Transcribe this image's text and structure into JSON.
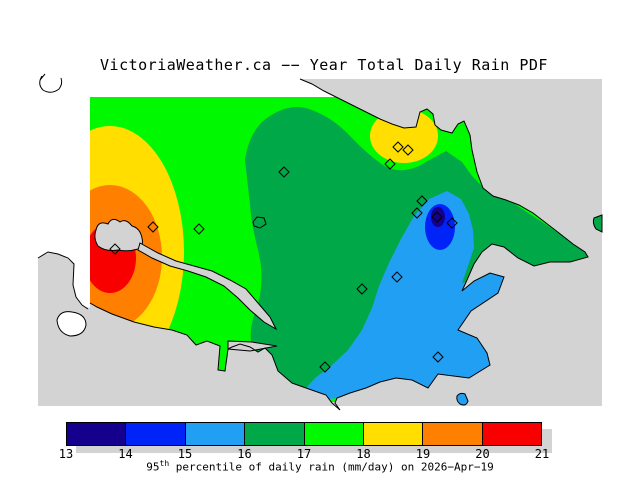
{
  "title": "VictoriaWeather.ca −− Year Total Daily Rain PDF",
  "colorbar": {
    "ticks": [
      "13",
      "14",
      "15",
      "16",
      "17",
      "18",
      "19",
      "20",
      "21"
    ],
    "segment_colors": [
      "#14008C",
      "#0023F8",
      "#219FF3",
      "#00A848",
      "#00F800",
      "#FFDE00",
      "#FF7F00",
      "#F80000"
    ],
    "caption_prefix": "95",
    "caption_sup": "th",
    "caption_rest": " percentile of daily rain (mm/day) on 2026−Apr−19"
  },
  "palette": {
    "navy_13_14": "#14008C",
    "blue_14_15": "#0023F8",
    "lightblue_15_16": "#219FF3",
    "green_16_17": "#00A848",
    "brightgreen_17_18": "#00F800",
    "yellow_18_19": "#FFDE00",
    "orange_19_20": "#FF7F00",
    "red_20_21": "#F80000",
    "sea_gray": "#D3D3D3",
    "land_outside_white": "#FFFFFF",
    "coastline_black": "#000000"
  },
  "map": {
    "station_markers": [
      [
        284,
        172
      ],
      [
        153,
        227
      ],
      [
        199,
        229
      ],
      [
        115,
        249
      ],
      [
        398,
        147
      ],
      [
        408,
        150
      ],
      [
        390,
        164
      ],
      [
        422,
        201
      ],
      [
        417,
        213
      ],
      [
        437,
        217
      ],
      [
        452,
        223
      ],
      [
        397,
        277
      ],
      [
        362,
        289
      ],
      [
        325,
        367
      ],
      [
        438,
        357
      ]
    ]
  },
  "chart_data": {
    "type": "heatmap",
    "title": "VictoriaWeather.ca -- Year Total Daily Rain PDF",
    "variable": "95th percentile of daily rain (mm/day)",
    "date": "2026-Apr-19",
    "units": "mm/day",
    "colorbar_ticks": [
      13,
      14,
      15,
      16,
      17,
      18,
      19,
      20,
      21
    ],
    "colorbar_colors": [
      "#14008C",
      "#0023F8",
      "#219FF3",
      "#00A848",
      "#00F800",
      "#FFDE00",
      "#FF7F00",
      "#F80000"
    ],
    "legend_position": "bottom",
    "region": "Greater Victoria / Saanich Peninsula, BC (land contoured, sea gray)",
    "spatial_pattern": [
      {
        "region": "far west (Sooke core)",
        "value": "20-21 (red maximum)"
      },
      {
        "region": "west ring around core",
        "value": "19-20 (orange)"
      },
      {
        "region": "west band",
        "value": "18-19 (yellow)"
      },
      {
        "region": "west-central band",
        "value": "17-18 (bright green)"
      },
      {
        "region": "central / north peninsula",
        "value": "16-17 (green)"
      },
      {
        "region": "north coast pocket",
        "value": "18-19 (yellow crescent)"
      },
      {
        "region": "southeast (Victoria, Gordon Head)",
        "value": "15-16 (light blue)"
      },
      {
        "region": "small NE pocket",
        "value": "14-15 with 13-14 core (blue/navy minimum)"
      }
    ],
    "station_marker_count": 15
  }
}
